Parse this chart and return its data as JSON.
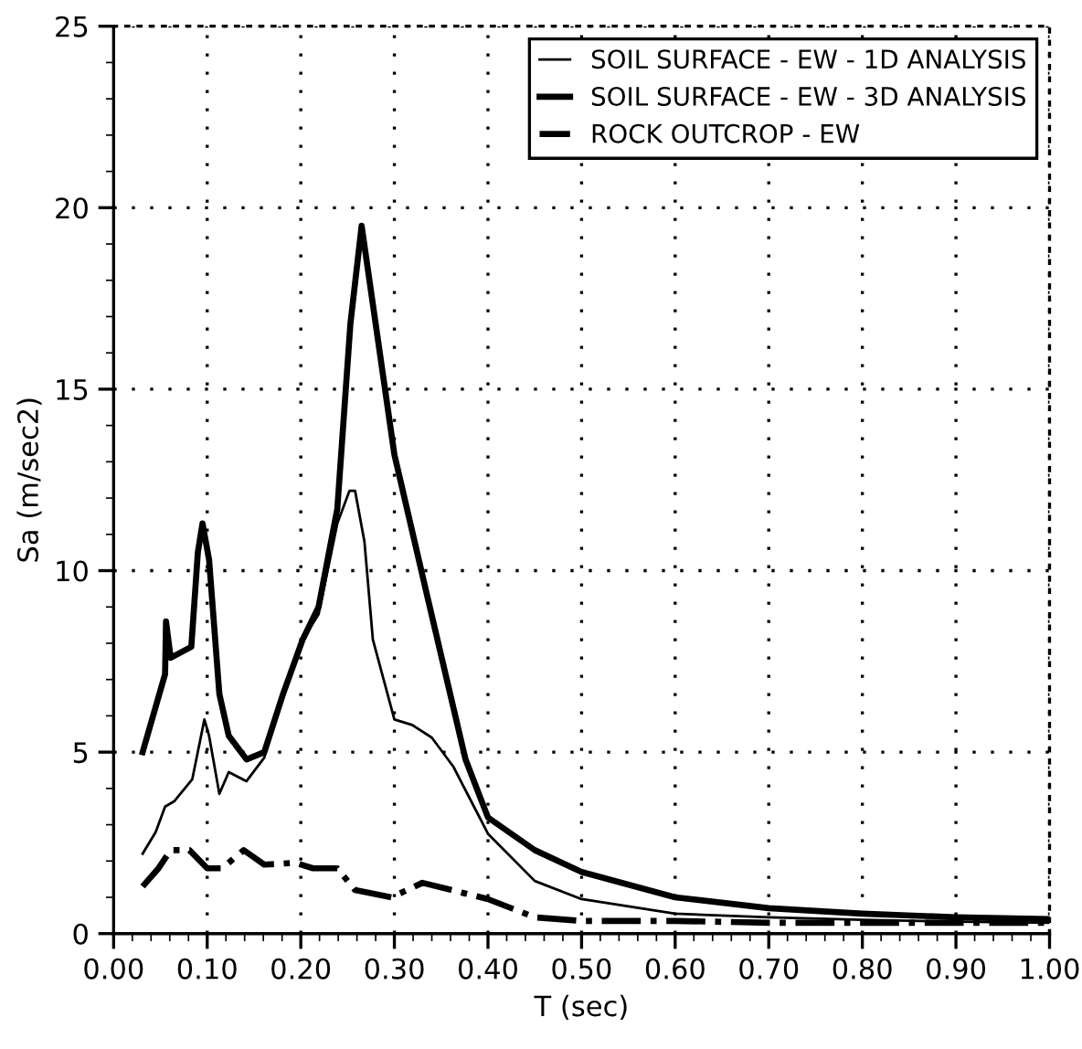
{
  "chart_data": {
    "type": "line",
    "xlabel": "T (sec)",
    "ylabel": "Sa (m/sec2)",
    "xlim": [
      0,
      1
    ],
    "ylim": [
      0,
      25
    ],
    "xticks": [
      {
        "value": 0,
        "label": "0.00"
      },
      {
        "value": 0.1,
        "label": "0.10"
      },
      {
        "value": 0.2,
        "label": "0.20"
      },
      {
        "value": 0.3,
        "label": "0.30"
      },
      {
        "value": 0.4,
        "label": "0.40"
      },
      {
        "value": 0.5,
        "label": "0.50"
      },
      {
        "value": 0.6,
        "label": "0.60"
      },
      {
        "value": 0.7,
        "label": "0.70"
      },
      {
        "value": 0.8,
        "label": "0.80"
      },
      {
        "value": 0.9,
        "label": "0.90"
      },
      {
        "value": 1,
        "label": "1.00"
      }
    ],
    "yticks": [
      0,
      5,
      10,
      15,
      20,
      25
    ],
    "grid": true,
    "legend": "top right",
    "series": [
      {
        "name": "SOIL SURFACE - EW - 1D ANALYSIS",
        "color": "#000000",
        "line_style": "solid",
        "x": [
          0.031,
          0.045,
          0.055,
          0.065,
          0.084,
          0.097,
          0.102,
          0.113,
          0.123,
          0.142,
          0.161,
          0.181,
          0.202,
          0.219,
          0.239,
          0.252,
          0.258,
          0.268,
          0.277,
          0.3,
          0.319,
          0.34,
          0.363,
          0.4,
          0.45,
          0.5,
          0.6,
          0.7,
          0.8,
          0.9,
          1.0
        ],
        "values": [
          2.2,
          2.8,
          3.5,
          3.65,
          4.25,
          5.9,
          5.45,
          3.85,
          4.45,
          4.2,
          4.85,
          6.6,
          8.1,
          8.8,
          11.3,
          12.2,
          12.2,
          10.8,
          8.1,
          5.9,
          5.75,
          5.4,
          4.6,
          2.75,
          1.45,
          0.95,
          0.55,
          0.45,
          0.38,
          0.33,
          0.3
        ]
      },
      {
        "name": "SOIL SURFACE - EW - 3D ANALYSIS",
        "color": "#000000",
        "line_style": "solid",
        "x": [
          0.031,
          0.055,
          0.056,
          0.061,
          0.083,
          0.09,
          0.095,
          0.102,
          0.113,
          0.123,
          0.142,
          0.161,
          0.181,
          0.202,
          0.219,
          0.239,
          0.253,
          0.265,
          0.3,
          0.336,
          0.376,
          0.4,
          0.45,
          0.5,
          0.6,
          0.7,
          0.8,
          0.9,
          1.0
        ],
        "values": [
          5.0,
          7.15,
          8.6,
          7.6,
          7.9,
          10.5,
          11.3,
          10.3,
          6.6,
          5.45,
          4.8,
          5.0,
          6.6,
          8.1,
          9.0,
          11.7,
          16.8,
          19.5,
          13.2,
          9.2,
          4.8,
          3.2,
          2.3,
          1.7,
          1.0,
          0.7,
          0.55,
          0.45,
          0.4
        ]
      },
      {
        "name": "ROCK OUTCROP - EW",
        "color": "#000000",
        "line_style": "dashdot",
        "x": [
          0.031,
          0.048,
          0.061,
          0.081,
          0.1,
          0.116,
          0.139,
          0.161,
          0.194,
          0.213,
          0.239,
          0.258,
          0.297,
          0.33,
          0.4,
          0.45,
          0.5,
          0.6,
          0.7,
          0.8,
          0.9,
          1.0
        ],
        "values": [
          1.3,
          1.8,
          2.3,
          2.3,
          1.8,
          1.8,
          2.3,
          1.9,
          1.95,
          1.8,
          1.8,
          1.2,
          1.0,
          1.4,
          0.95,
          0.45,
          0.35,
          0.35,
          0.3,
          0.3,
          0.3,
          0.3
        ]
      }
    ]
  }
}
